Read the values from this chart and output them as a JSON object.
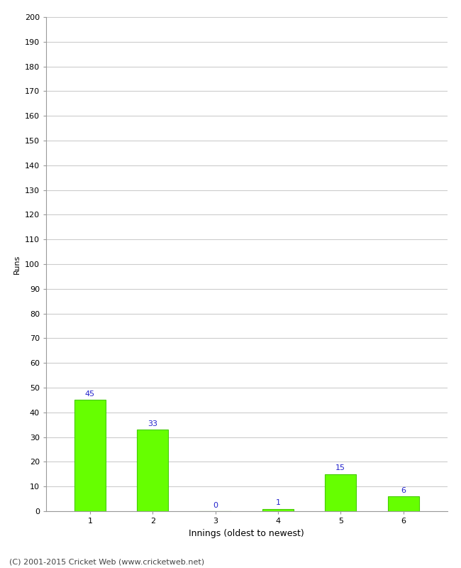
{
  "categories": [
    "1",
    "2",
    "3",
    "4",
    "5",
    "6"
  ],
  "values": [
    45,
    33,
    0,
    1,
    15,
    6
  ],
  "bar_color": "#66ff00",
  "bar_edge_color": "#44cc00",
  "xlabel": "Innings (oldest to newest)",
  "ylabel": "Runs",
  "ylim": [
    0,
    200
  ],
  "yticks": [
    0,
    10,
    20,
    30,
    40,
    50,
    60,
    70,
    80,
    90,
    100,
    110,
    120,
    130,
    140,
    150,
    160,
    170,
    180,
    190,
    200
  ],
  "label_color": "#2222cc",
  "label_fontsize": 8,
  "xlabel_fontsize": 9,
  "ylabel_fontsize": 8,
  "tick_fontsize": 8,
  "footer_text": "(C) 2001-2015 Cricket Web (www.cricketweb.net)",
  "footer_fontsize": 8,
  "background_color": "#ffffff",
  "grid_color": "#cccccc",
  "bar_width": 0.5
}
